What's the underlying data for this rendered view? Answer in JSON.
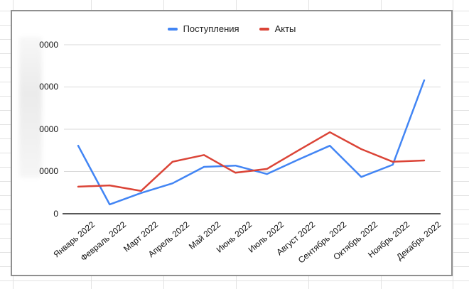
{
  "chart_data": {
    "type": "line",
    "title": "",
    "categories": [
      "Январь 2022",
      "Февраль 2022",
      "Март 2022",
      "Апрель 2022",
      "Май 2022",
      "Июнь 2022",
      "Июль 2022",
      "Август 2022",
      "Сентябрь 2022",
      "Октябрь 2022",
      "Ноябрь 2022",
      "Декабрь 2022"
    ],
    "series": [
      {
        "name": "Поступления",
        "color": "#4285f4",
        "values": [
          16100,
          2200,
          4900,
          7200,
          11100,
          11400,
          9400,
          12800,
          16100,
          8700,
          11600,
          31600
        ]
      },
      {
        "name": "Акты",
        "color": "#db4437",
        "values": [
          6400,
          6700,
          5400,
          12300,
          13900,
          9700,
          10600,
          15000,
          19300,
          15300,
          12300,
          12600
        ]
      }
    ],
    "y_axis": {
      "tick_labels_visible": [
        "0",
        "0000",
        "0000",
        "0000",
        "0000"
      ],
      "tick_values_estimated": [
        0,
        10000,
        20000,
        30000,
        40000
      ],
      "labels_partially_redacted": true
    },
    "xlabel": "",
    "ylabel": "",
    "ylim": [
      0,
      48000
    ],
    "grid": true,
    "legend_position": "top",
    "x_label_rotation_deg": -40
  },
  "colors": {
    "series_blue": "#4285f4",
    "series_red": "#db4437",
    "gridline": "#d9d9d9",
    "axis_line": "#212121",
    "chart_border": "#8f8f8f",
    "sheet_gridline": "#e2e2e2",
    "label_text": "#111111"
  }
}
